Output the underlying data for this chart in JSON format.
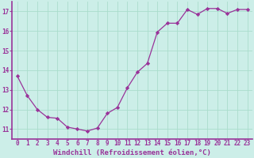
{
  "x": [
    0,
    1,
    2,
    3,
    4,
    5,
    6,
    7,
    8,
    9,
    10,
    11,
    12,
    13,
    14,
    15,
    16,
    17,
    18,
    19,
    20,
    21,
    22,
    23
  ],
  "y": [
    13.7,
    12.7,
    12.0,
    11.6,
    11.55,
    11.1,
    11.0,
    10.9,
    11.05,
    11.8,
    12.1,
    13.1,
    13.9,
    14.35,
    15.95,
    16.4,
    16.4,
    17.1,
    16.85,
    17.15,
    17.15,
    16.9,
    17.1,
    17.1
  ],
  "line_color": "#993399",
  "marker": "D",
  "marker_size": 2.2,
  "bg_color": "#cceee8",
  "grid_color": "#aaddcc",
  "xlabel": "Windchill (Refroidissement éolien,°C)",
  "xlabel_fontsize": 6.5,
  "tick_fontsize": 5.5,
  "ylim": [
    10.5,
    17.5
  ],
  "xlim": [
    -0.5,
    23.5
  ],
  "yticks": [
    11,
    12,
    13,
    14,
    15,
    16,
    17
  ],
  "xticks": [
    0,
    1,
    2,
    3,
    4,
    5,
    6,
    7,
    8,
    9,
    10,
    11,
    12,
    13,
    14,
    15,
    16,
    17,
    18,
    19,
    20,
    21,
    22,
    23
  ],
  "spine_color": "#993399",
  "axis_linewidth": 1.2
}
